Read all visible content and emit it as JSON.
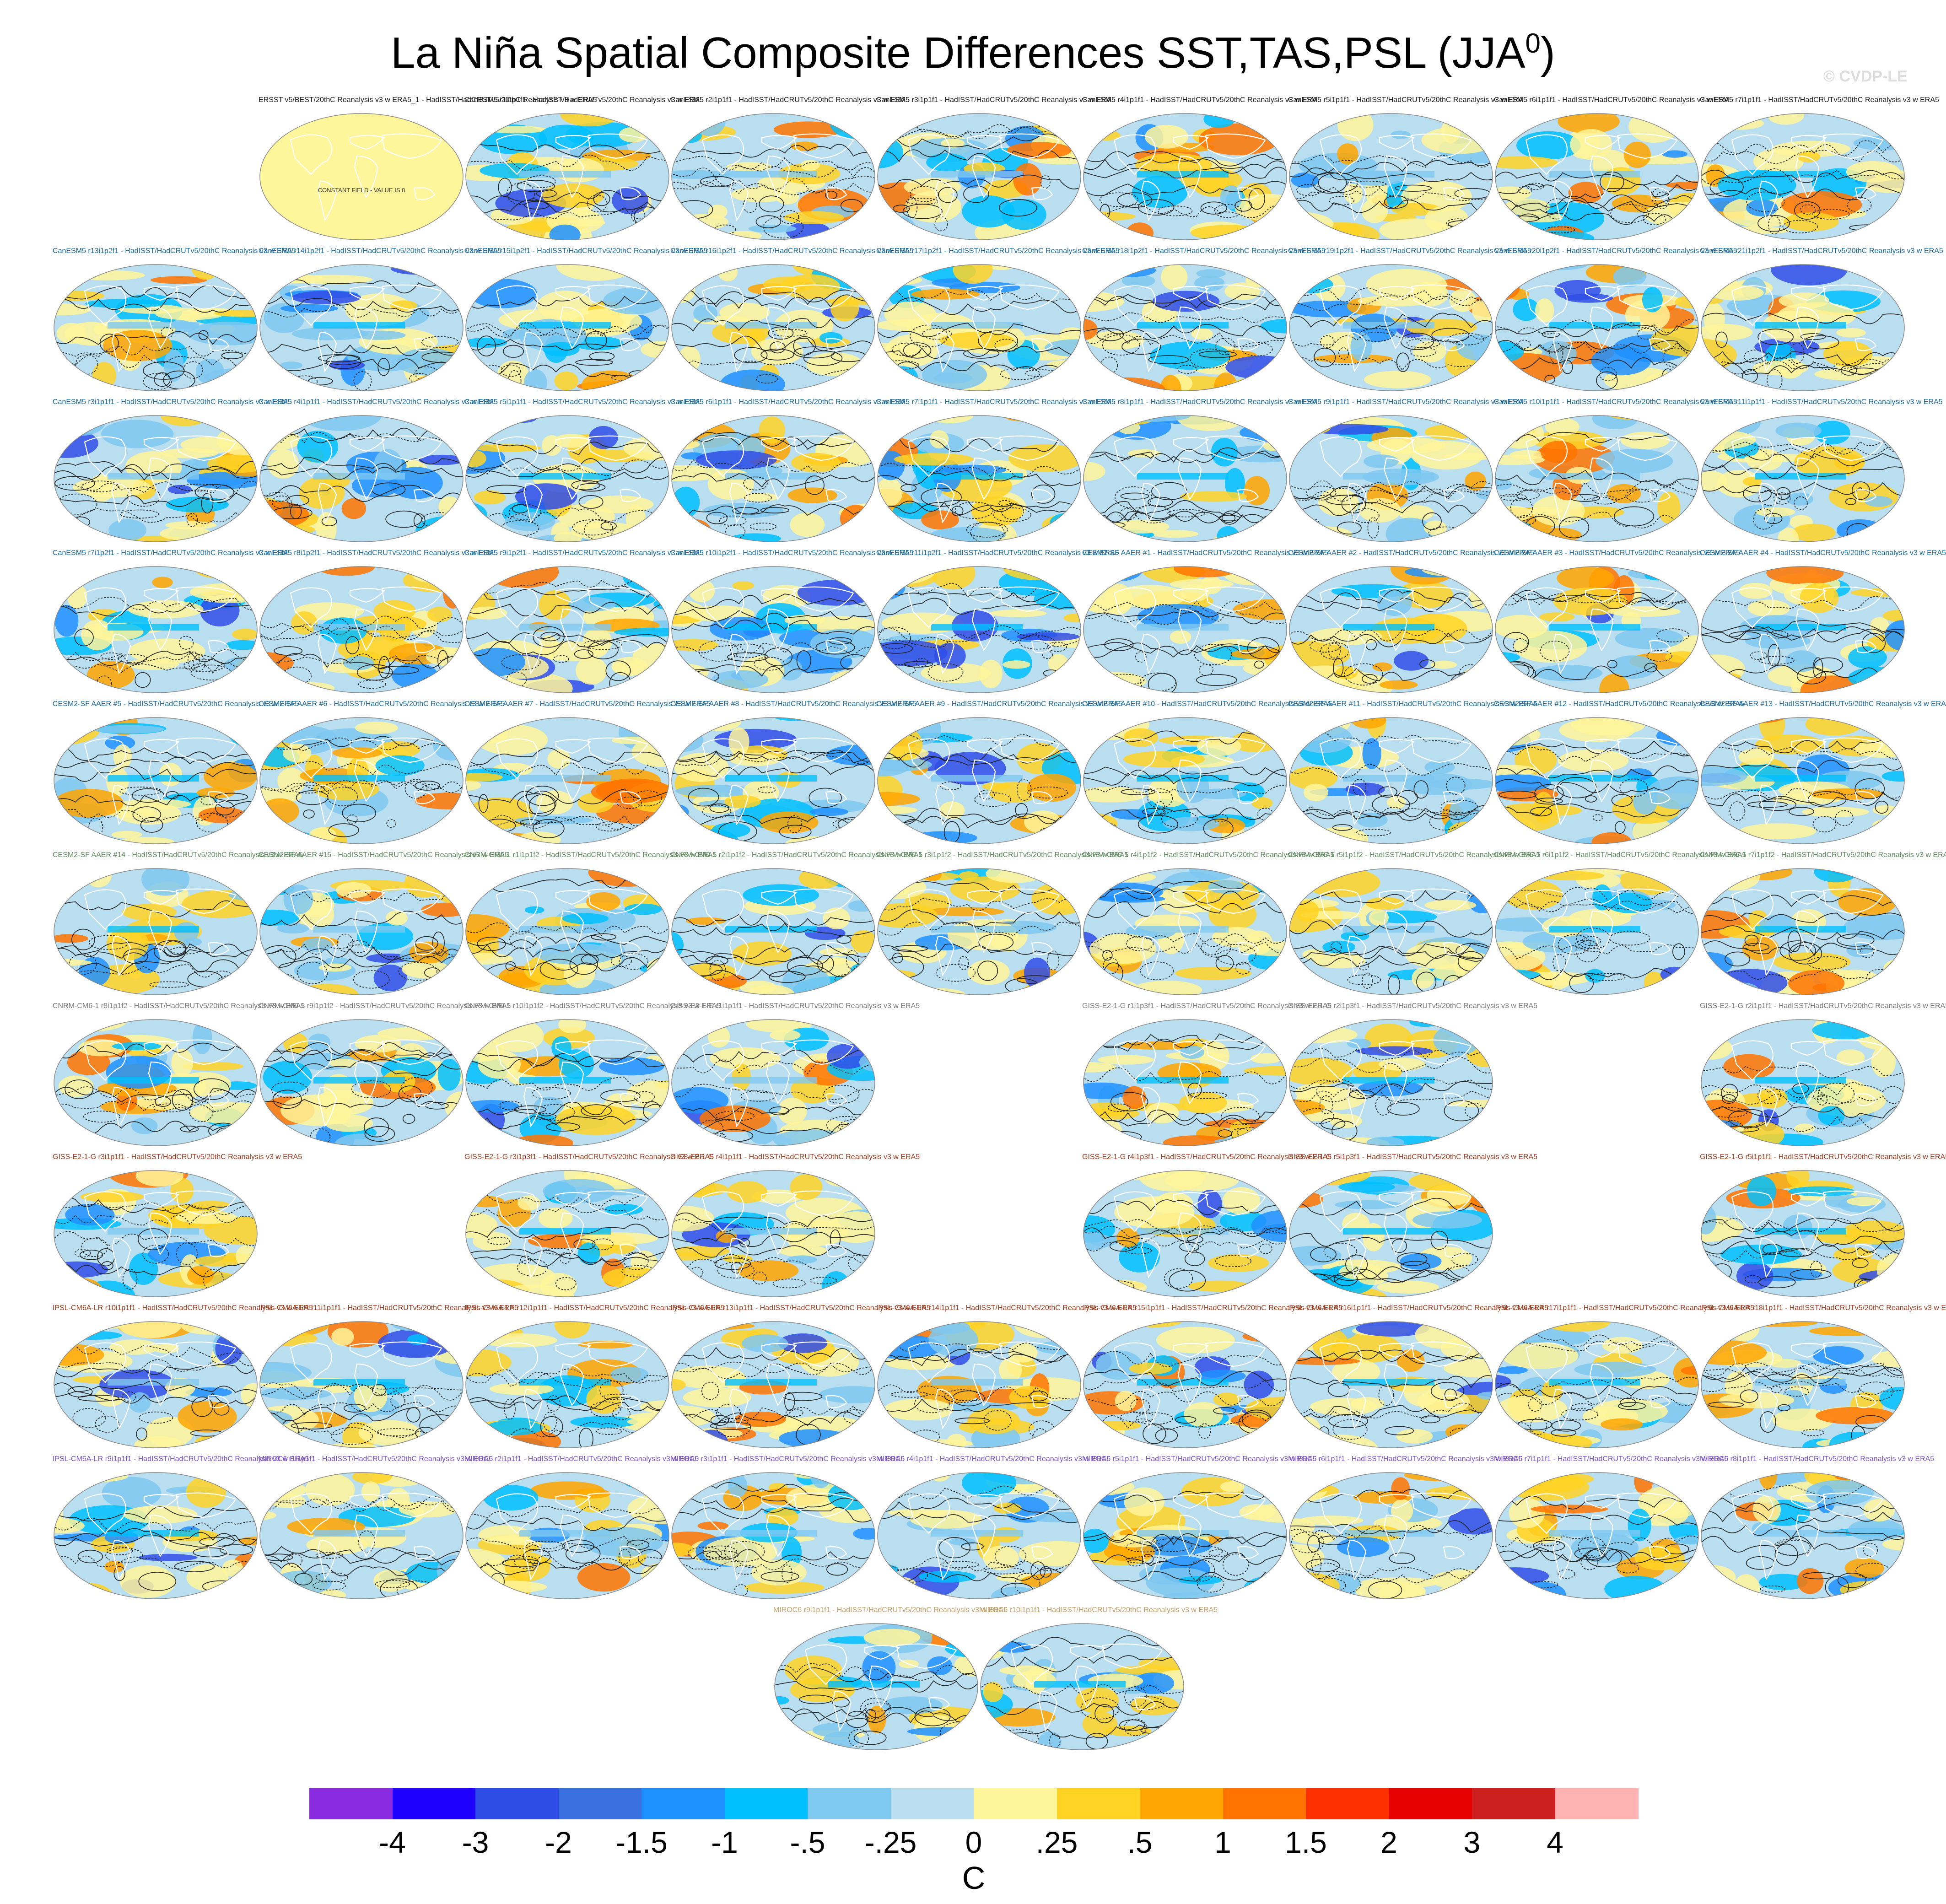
{
  "title": "La Niña Spatial Composite Differences SST,TAS,PSL (JJA",
  "title_sup": "0",
  "title_close": ")",
  "watermark": "© CVDP-LE",
  "chart_data": {
    "type": "heatmap",
    "title": "La Niña Spatial Composite Differences SST,TAS,PSL (JJA0)",
    "projection": "Robinson (global maps)",
    "fields": "SST/TAS shaded, PSL contoured (solid positive, dashed negative)",
    "colorbar": {
      "units": "C",
      "tick_labels": [
        "-4",
        "-3",
        "-2",
        "-1.5",
        "-1",
        "-.5",
        "-.25",
        "0",
        ".25",
        ".5",
        "1",
        "1.5",
        "2",
        "3",
        "4"
      ],
      "colors": [
        "#8a2be2",
        "#1e00ff",
        "#2f4de6",
        "#3a6fe0",
        "#1f90ff",
        "#00bfff",
        "#7fc8f0",
        "#b8def0",
        "#fff59a",
        "#ffd324",
        "#ffa600",
        "#ff7400",
        "#ff3000",
        "#e60000",
        "#cc1f1f",
        "#ffb2b2"
      ]
    },
    "panels": [
      {
        "label": "ERSST v5/BEST/20thC Reanalysis v3 w ERA5_1 - HadISST/HadCRUTv5/20thC Reanalysis v3 w ERA5",
        "note": "CONSTANT FIELD - VALUE IS 0"
      },
      {
        "label": "CanESM5 r1i1p1f1 - HadISST/HadCRUTv5/20thC Reanalysis v3 w ERA5"
      },
      {
        "label": "CanESM5 r2i1p1f1 - HadISST/HadCRUTv5/20thC Reanalysis v3 w ERA5"
      },
      {
        "label": "CanESM5 r3i1p1f1 - HadISST/HadCRUTv5/20thC Reanalysis v3 w ERA5"
      },
      {
        "label": "CanESM5 r4i1p1f1 - HadISST/HadCRUTv5/20thC Reanalysis v3 w ERA5"
      },
      {
        "label": "CanESM5 r5i1p1f1 - HadISST/HadCRUTv5/20thC Reanalysis v3 w ERA5"
      },
      {
        "label": "CanESM5 r6i1p1f1 - HadISST/HadCRUTv5/20thC Reanalysis v3 w ERA5"
      },
      {
        "label": "CanESM5 r7i1p1f1 - HadISST/HadCRUTv5/20thC Reanalysis v3 w ERA5"
      },
      {
        "label": "CanESM5 r13i1p2f1 - HadISST/HadCRUTv5/20thC Reanalysis v3 w ERA5"
      },
      {
        "label": "CanESM5 r14i1p2f1 - HadISST/HadCRUTv5/20thC Reanalysis v3 w ERA5"
      },
      {
        "label": "CanESM5 r15i1p2f1 - HadISST/HadCRUTv5/20thC Reanalysis v3 w ERA5"
      },
      {
        "label": "CanESM5 r16i1p2f1 - HadISST/HadCRUTv5/20thC Reanalysis v3 w ERA5"
      },
      {
        "label": "CanESM5 r17i1p2f1 - HadISST/HadCRUTv5/20thC Reanalysis v3 w ERA5"
      },
      {
        "label": "CanESM5 r18i1p2f1 - HadISST/HadCRUTv5/20thC Reanalysis v3 w ERA5"
      },
      {
        "label": "CanESM5 r19i1p2f1 - HadISST/HadCRUTv5/20thC Reanalysis v3 w ERA5"
      },
      {
        "label": "CanESM5 r20i1p2f1 - HadISST/HadCRUTv5/20thC Reanalysis v3 w ERA5"
      },
      {
        "label": "CanESM5 r21i1p2f1 - HadISST/HadCRUTv5/20thC Reanalysis v3 w ERA5"
      },
      {
        "label": "CanESM5 r3i1p1f1 - HadISST/HadCRUTv5/20thC Reanalysis v3 w ERA5"
      },
      {
        "label": "CanESM5 r4i1p1f1 - HadISST/HadCRUTv5/20thC Reanalysis v3 w ERA5"
      },
      {
        "label": "CanESM5 r5i1p1f1 - HadISST/HadCRUTv5/20thC Reanalysis v3 w ERA5"
      },
      {
        "label": "CanESM5 r6i1p1f1 - HadISST/HadCRUTv5/20thC Reanalysis v3 w ERA5"
      },
      {
        "label": "CanESM5 r7i1p1f1 - HadISST/HadCRUTv5/20thC Reanalysis v3 w ERA5"
      },
      {
        "label": "CanESM5 r8i1p1f1 - HadISST/HadCRUTv5/20thC Reanalysis v3 w ERA5"
      },
      {
        "label": "CanESM5 r9i1p1f1 - HadISST/HadCRUTv5/20thC Reanalysis v3 w ERA5"
      },
      {
        "label": "CanESM5 r10i1p1f1 - HadISST/HadCRUTv5/20thC Reanalysis v3 w ERA5"
      },
      {
        "label": "CanESM5 r11i1p1f1 - HadISST/HadCRUTv5/20thC Reanalysis v3 w ERA5"
      },
      {
        "label": "CanESM5 r7i1p2f1 - HadISST/HadCRUTv5/20thC Reanalysis v3 w ERA5"
      },
      {
        "label": "CanESM5 r8i1p2f1 - HadISST/HadCRUTv5/20thC Reanalysis v3 w ERA5"
      },
      {
        "label": "CanESM5 r9i1p2f1 - HadISST/HadCRUTv5/20thC Reanalysis v3 w ERA5"
      },
      {
        "label": "CanESM5 r10i1p2f1 - HadISST/HadCRUTv5/20thC Reanalysis v3 w ERA5"
      },
      {
        "label": "CanESM5 r11i1p2f1 - HadISST/HadCRUTv5/20thC Reanalysis v3 w ERA5"
      },
      {
        "label": "CESM2-SF AAER #1 - HadISST/HadCRUTv5/20thC Reanalysis v3 w ERA5"
      },
      {
        "label": "CESM2-SF AAER #2 - HadISST/HadCRUTv5/20thC Reanalysis v3 w ERA5"
      },
      {
        "label": "CESM2-SF AAER #3 - HadISST/HadCRUTv5/20thC Reanalysis v3 w ERA5"
      },
      {
        "label": "CESM2-SF AAER #4 - HadISST/HadCRUTv5/20thC Reanalysis v3 w ERA5"
      },
      {
        "label": "CESM2-SF AAER #5 - HadISST/HadCRUTv5/20thC Reanalysis v3 w ERA5"
      },
      {
        "label": "CESM2-SF AAER #6 - HadISST/HadCRUTv5/20thC Reanalysis v3 w ERA5"
      },
      {
        "label": "CESM2-SF AAER #7 - HadISST/HadCRUTv5/20thC Reanalysis v3 w ERA5"
      },
      {
        "label": "CESM2-SF AAER #8 - HadISST/HadCRUTv5/20thC Reanalysis v3 w ERA5"
      },
      {
        "label": "CESM2-SF AAER #9 - HadISST/HadCRUTv5/20thC Reanalysis v3 w ERA5"
      },
      {
        "label": "CESM2-SF AAER #10 - HadISST/HadCRUTv5/20thC Reanalysis v3 w ERA5"
      },
      {
        "label": "CESM2-SF AAER #11 - HadISST/HadCRUTv5/20thC Reanalysis v3 w ERA5"
      },
      {
        "label": "CESM2-SF AAER #12 - HadISST/HadCRUTv5/20thC Reanalysis v3 w ERA5"
      },
      {
        "label": "CESM2-SF AAER #13 - HadISST/HadCRUTv5/20thC Reanalysis v3 w ERA5"
      },
      {
        "label": "CESM2-SF AAER #14 - HadISST/HadCRUTv5/20thC Reanalysis v3 w ERA5"
      },
      {
        "label": "CESM2-SF AAER #15 - HadISST/HadCRUTv5/20thC Reanalysis v3 w ERA5"
      },
      {
        "label": "CNRM-CM6-1 r1i1p1f2 - HadISST/HadCRUTv5/20thC Reanalysis v3 w ERA5"
      },
      {
        "label": "CNRM-CM6-1 r2i1p1f2 - HadISST/HadCRUTv5/20thC Reanalysis v3 w ERA5"
      },
      {
        "label": "CNRM-CM6-1 r3i1p1f2 - HadISST/HadCRUTv5/20thC Reanalysis v3 w ERA5"
      },
      {
        "label": "CNRM-CM6-1 r4i1p1f2 - HadISST/HadCRUTv5/20thC Reanalysis v3 w ERA5"
      },
      {
        "label": "CNRM-CM6-1 r5i1p1f2 - HadISST/HadCRUTv5/20thC Reanalysis v3 w ERA5"
      },
      {
        "label": "CNRM-CM6-1 r6i1p1f2 - HadISST/HadCRUTv5/20thC Reanalysis v3 w ERA5"
      },
      {
        "label": "CNRM-CM6-1 r7i1p1f2 - HadISST/HadCRUTv5/20thC Reanalysis v3 w ERA5"
      },
      {
        "label": "CNRM-CM6-1 r8i1p1f2 - HadISST/HadCRUTv5/20thC Reanalysis v3 w ERA5"
      },
      {
        "label": "CNRM-CM6-1 r9i1p1f2 - HadISST/HadCRUTv5/20thC Reanalysis v3 w ERA5"
      },
      {
        "label": "CNRM-CM6-1 r10i1p1f2 - HadISST/HadCRUTv5/20thC Reanalysis v3 w ERA5"
      },
      {
        "label": "GISS-E2-1-G r1i1p1f1 - HadISST/HadCRUTv5/20thC Reanalysis v3 w ERA5"
      },
      {
        "label": "GISS-E2-1-G r1i1p3f1 - HadISST/HadCRUTv5/20thC Reanalysis v3 w ERA5"
      },
      {
        "label": "GISS-E2-1-G r2i1p3f1 - HadISST/HadCRUTv5/20thC Reanalysis v3 w ERA5"
      },
      {
        "label": "GISS-E2-1-G r2i1p1f1 - HadISST/HadCRUTv5/20thC Reanalysis v3 w ERA5"
      },
      {
        "label": "GISS-E2-1-G r3i1p1f1 - HadISST/HadCRUTv5/20thC Reanalysis v3 w ERA5"
      },
      {
        "label": "GISS-E2-1-G r3i1p3f1 - HadISST/HadCRUTv5/20thC Reanalysis v3 w ERA5"
      },
      {
        "label": "GISS-E2-1-G r4i1p1f1 - HadISST/HadCRUTv5/20thC Reanalysis v3 w ERA5"
      },
      {
        "label": "GISS-E2-1-G r4i1p3f1 - HadISST/HadCRUTv5/20thC Reanalysis v3 w ERA5"
      },
      {
        "label": "GISS-E2-1-G r5i1p3f1 - HadISST/HadCRUTv5/20thC Reanalysis v3 w ERA5"
      },
      {
        "label": "GISS-E2-1-G r5i1p1f1 - HadISST/HadCRUTv5/20thC Reanalysis v3 w ERA5"
      },
      {
        "label": "IPSL-CM6A-LR r10i1p1f1 - HadISST/HadCRUTv5/20thC Reanalysis v3 w ERA5"
      },
      {
        "label": "IPSL-CM6A-LR r11i1p1f1 - HadISST/HadCRUTv5/20thC Reanalysis v3 w ERA5"
      },
      {
        "label": "IPSL-CM6A-LR r12i1p1f1 - HadISST/HadCRUTv5/20thC Reanalysis v3 w ERA5"
      },
      {
        "label": "IPSL-CM6A-LR r13i1p1f1 - HadISST/HadCRUTv5/20thC Reanalysis v3 w ERA5"
      },
      {
        "label": "IPSL-CM6A-LR r14i1p1f1 - HadISST/HadCRUTv5/20thC Reanalysis v3 w ERA5"
      },
      {
        "label": "IPSL-CM6A-LR r15i1p1f1 - HadISST/HadCRUTv5/20thC Reanalysis v3 w ERA5"
      },
      {
        "label": "IPSL-CM6A-LR r16i1p1f1 - HadISST/HadCRUTv5/20thC Reanalysis v3 w ERA5"
      },
      {
        "label": "IPSL-CM6A-LR r17i1p1f1 - HadISST/HadCRUTv5/20thC Reanalysis v3 w ERA5"
      },
      {
        "label": "IPSL-CM6A-LR r18i1p1f1 - HadISST/HadCRUTv5/20thC Reanalysis v3 w ERA5"
      },
      {
        "label": "IPSL-CM6A-LR r9i1p1f1 - HadISST/HadCRUTv5/20thC Reanalysis v3 w ERA5"
      },
      {
        "label": "MIROC6 r1i1p1f1 - HadISST/HadCRUTv5/20thC Reanalysis v3 w ERA5"
      },
      {
        "label": "MIROC6 r2i1p1f1 - HadISST/HadCRUTv5/20thC Reanalysis v3 w ERA5"
      },
      {
        "label": "MIROC6 r3i1p1f1 - HadISST/HadCRUTv5/20thC Reanalysis v3 w ERA5"
      },
      {
        "label": "MIROC6 r4i1p1f1 - HadISST/HadCRUTv5/20thC Reanalysis v3 w ERA5"
      },
      {
        "label": "MIROC6 r5i1p1f1 - HadISST/HadCRUTv5/20thC Reanalysis v3 w ERA5"
      },
      {
        "label": "MIROC6 r6i1p1f1 - HadISST/HadCRUTv5/20thC Reanalysis v3 w ERA5"
      },
      {
        "label": "MIROC6 r7i1p1f1 - HadISST/HadCRUTv5/20thC Reanalysis v3 w ERA5"
      },
      {
        "label": "MIROC6 r8i1p1f1 - HadISST/HadCRUTv5/20thC Reanalysis v3 w ERA5"
      },
      {
        "label": "MIROC6 r9i1p1f1 - HadISST/HadCRUTv5/20thC Reanalysis v3 w ERA5"
      },
      {
        "label": "MIROC6 r10i1p1f1 - HadISST/HadCRUTv5/20thC Reanalysis v3 w ERA5"
      }
    ]
  }
}
